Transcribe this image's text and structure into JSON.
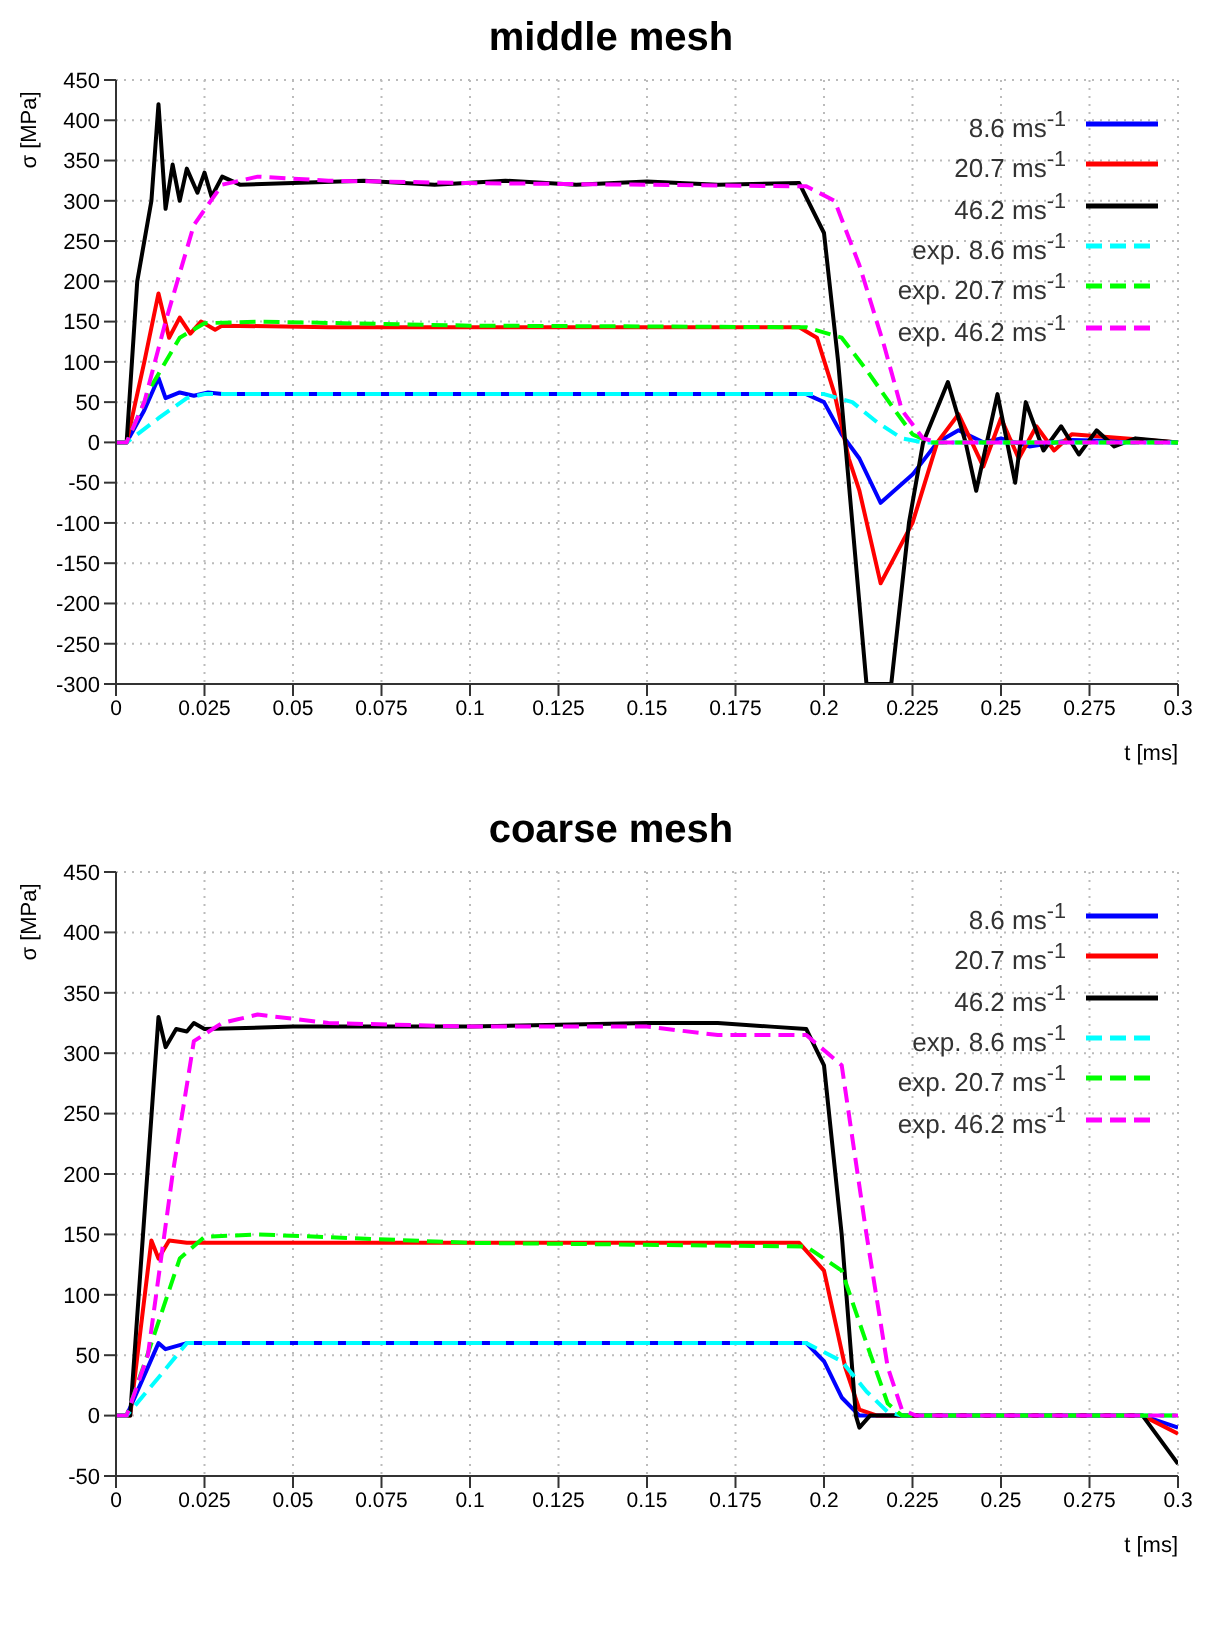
{
  "chart_data": [
    {
      "type": "line",
      "title": "middle mesh",
      "xlabel": "t [ms]",
      "ylabel": "σ [MPa]",
      "xlim": [
        0,
        0.3
      ],
      "ylim": [
        -300,
        450
      ],
      "xticks": [
        0,
        0.025,
        0.05,
        0.075,
        0.1,
        0.125,
        0.15,
        0.175,
        0.2,
        0.225,
        0.25,
        0.275,
        0.3
      ],
      "yticks": [
        -300,
        -250,
        -200,
        -150,
        -100,
        -50,
        0,
        50,
        100,
        150,
        200,
        250,
        300,
        350,
        400,
        450
      ],
      "grid": true,
      "legend": "top right",
      "series": [
        {
          "name": "8.6 ms$^{-1}$",
          "color": "#0000ff",
          "line_style": "solid",
          "x": [
            0,
            0.003,
            0.008,
            0.012,
            0.014,
            0.018,
            0.022,
            0.026,
            0.03,
            0.06,
            0.1,
            0.15,
            0.195,
            0.2,
            0.205,
            0.21,
            0.216,
            0.225,
            0.232,
            0.238,
            0.245,
            0.25,
            0.258,
            0.27,
            0.3
          ],
          "values": [
            0,
            0,
            40,
            80,
            55,
            62,
            58,
            62,
            60,
            60,
            60,
            60,
            60,
            50,
            10,
            -20,
            -75,
            -40,
            0,
            15,
            0,
            5,
            -5,
            3,
            0
          ]
        },
        {
          "name": "20.7 ms$^{-1}$",
          "color": "#ff0000",
          "line_style": "solid",
          "x": [
            0,
            0.003,
            0.008,
            0.012,
            0.015,
            0.018,
            0.021,
            0.024,
            0.028,
            0.03,
            0.06,
            0.1,
            0.15,
            0.193,
            0.198,
            0.203,
            0.207,
            0.21,
            0.216,
            0.225,
            0.232,
            0.238,
            0.245,
            0.25,
            0.255,
            0.26,
            0.265,
            0.27,
            0.3
          ],
          "values": [
            0,
            0,
            100,
            185,
            130,
            155,
            135,
            150,
            140,
            145,
            143,
            143,
            143,
            143,
            130,
            60,
            -20,
            -60,
            -175,
            -100,
            0,
            35,
            -30,
            30,
            -20,
            20,
            -10,
            10,
            0
          ]
        },
        {
          "name": "46.2 ms$^{-1}$",
          "color": "#000000",
          "line_style": "solid",
          "x": [
            0,
            0.003,
            0.006,
            0.01,
            0.012,
            0.014,
            0.016,
            0.018,
            0.02,
            0.023,
            0.025,
            0.027,
            0.03,
            0.035,
            0.05,
            0.07,
            0.09,
            0.11,
            0.13,
            0.15,
            0.17,
            0.193,
            0.2,
            0.204,
            0.208,
            0.212,
            0.219,
            0.224,
            0.228,
            0.235,
            0.24,
            0.243,
            0.249,
            0.254,
            0.257,
            0.262,
            0.267,
            0.272,
            0.277,
            0.282,
            0.288,
            0.3
          ],
          "values": [
            0,
            0,
            200,
            300,
            420,
            290,
            345,
            300,
            340,
            310,
            335,
            305,
            330,
            320,
            322,
            325,
            320,
            325,
            320,
            324,
            320,
            322,
            260,
            100,
            -100,
            -300,
            -300,
            -100,
            0,
            75,
            0,
            -60,
            60,
            -50,
            50,
            -10,
            20,
            -15,
            15,
            -5,
            5,
            0
          ]
        },
        {
          "name": "exp. 8.6 ms$^{-1}$",
          "color": "#00ffff",
          "line_style": "dashed",
          "x": [
            0,
            0.003,
            0.012,
            0.02,
            0.025,
            0.1,
            0.2,
            0.208,
            0.215,
            0.222,
            0.228,
            0.3
          ],
          "values": [
            0,
            0,
            30,
            55,
            60,
            60,
            60,
            50,
            25,
            5,
            0,
            0
          ]
        },
        {
          "name": "exp. 20.7 ms$^{-1}$",
          "color": "#00ff00",
          "line_style": "dashed",
          "x": [
            0,
            0.003,
            0.01,
            0.018,
            0.025,
            0.04,
            0.1,
            0.195,
            0.205,
            0.212,
            0.22,
            0.225,
            0.23,
            0.3
          ],
          "values": [
            0,
            0,
            70,
            130,
            148,
            150,
            145,
            143,
            130,
            90,
            40,
            10,
            0,
            0
          ]
        },
        {
          "name": "exp. 46.2 ms$^{-1}$",
          "color": "#ff00ff",
          "line_style": "dashed",
          "x": [
            0,
            0.003,
            0.008,
            0.014,
            0.022,
            0.03,
            0.04,
            0.06,
            0.1,
            0.195,
            0.203,
            0.21,
            0.217,
            0.222,
            0.228,
            0.232,
            0.3
          ],
          "values": [
            0,
            0,
            50,
            150,
            270,
            320,
            330,
            325,
            322,
            318,
            300,
            220,
            120,
            40,
            5,
            0,
            0
          ]
        }
      ]
    },
    {
      "type": "line",
      "title": "coarse mesh",
      "xlabel": "t [ms]",
      "ylabel": "σ [MPa]",
      "xlim": [
        0,
        0.3
      ],
      "ylim": [
        -50,
        450
      ],
      "xticks": [
        0,
        0.025,
        0.05,
        0.075,
        0.1,
        0.125,
        0.15,
        0.175,
        0.2,
        0.225,
        0.25,
        0.275,
        0.3
      ],
      "yticks": [
        -50,
        0,
        50,
        100,
        150,
        200,
        250,
        300,
        350,
        400,
        450
      ],
      "grid": true,
      "legend": "top right",
      "series": [
        {
          "name": "8.6 ms$^{-1}$",
          "color": "#0000ff",
          "line_style": "solid",
          "x": [
            0,
            0.003,
            0.012,
            0.014,
            0.02,
            0.1,
            0.195,
            0.2,
            0.205,
            0.21,
            0.29,
            0.3
          ],
          "values": [
            0,
            0,
            60,
            55,
            60,
            60,
            60,
            45,
            15,
            0,
            0,
            -10
          ]
        },
        {
          "name": "20.7 ms$^{-1}$",
          "color": "#ff0000",
          "line_style": "solid",
          "x": [
            0,
            0.004,
            0.01,
            0.012,
            0.015,
            0.02,
            0.1,
            0.193,
            0.2,
            0.206,
            0.21,
            0.215,
            0.29,
            0.3
          ],
          "values": [
            0,
            0,
            145,
            130,
            145,
            143,
            143,
            143,
            120,
            40,
            5,
            0,
            0,
            -15
          ]
        },
        {
          "name": "46.2 ms$^{-1}$",
          "color": "#000000",
          "line_style": "solid",
          "x": [
            0,
            0.004,
            0.012,
            0.014,
            0.017,
            0.02,
            0.022,
            0.025,
            0.05,
            0.1,
            0.15,
            0.17,
            0.185,
            0.195,
            0.2,
            0.205,
            0.209,
            0.21,
            0.213,
            0.29,
            0.3
          ],
          "values": [
            0,
            0,
            330,
            305,
            320,
            318,
            325,
            320,
            322,
            322,
            325,
            325,
            322,
            320,
            290,
            150,
            0,
            -10,
            0,
            0,
            -40
          ]
        },
        {
          "name": "exp. 8.6 ms$^{-1}$",
          "color": "#00ffff",
          "line_style": "dashed",
          "x": [
            0,
            0.003,
            0.013,
            0.02,
            0.1,
            0.195,
            0.205,
            0.212,
            0.218,
            0.222,
            0.3
          ],
          "values": [
            0,
            0,
            35,
            60,
            60,
            60,
            45,
            20,
            3,
            0,
            0
          ]
        },
        {
          "name": "exp. 20.7 ms$^{-1}$",
          "color": "#00ff00",
          "line_style": "dashed",
          "x": [
            0,
            0.003,
            0.01,
            0.018,
            0.025,
            0.04,
            0.1,
            0.195,
            0.205,
            0.212,
            0.218,
            0.222,
            0.3
          ],
          "values": [
            0,
            0,
            60,
            130,
            148,
            150,
            143,
            140,
            120,
            60,
            10,
            0,
            0
          ]
        },
        {
          "name": "exp. 46.2 ms$^{-1}$",
          "color": "#ff00ff",
          "line_style": "dashed",
          "x": [
            0,
            0.003,
            0.009,
            0.016,
            0.022,
            0.03,
            0.04,
            0.06,
            0.1,
            0.15,
            0.17,
            0.195,
            0.205,
            0.212,
            0.218,
            0.222,
            0.226,
            0.3
          ],
          "values": [
            0,
            0,
            50,
            200,
            310,
            325,
            332,
            325,
            322,
            322,
            315,
            315,
            290,
            150,
            40,
            5,
            0,
            0
          ]
        }
      ]
    }
  ]
}
